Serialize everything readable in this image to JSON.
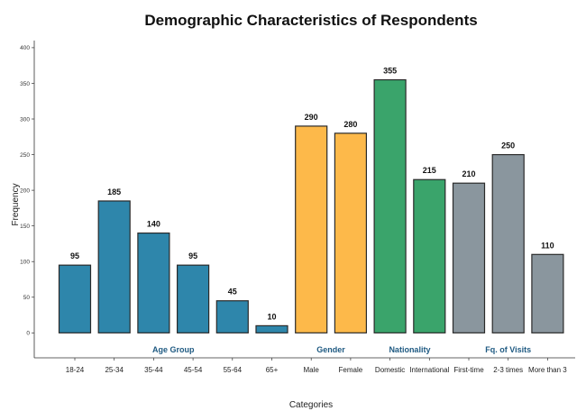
{
  "chart_data": {
    "type": "bar",
    "title": "Demographic Characteristics of Respondents",
    "xlabel": "Categories",
    "ylabel": "Frequency",
    "ylim": [
      -35,
      410
    ],
    "yticks": [
      0,
      50,
      100,
      150,
      200,
      250,
      300,
      350,
      400
    ],
    "grid": false,
    "categories": [
      "18-24",
      "25-34",
      "35-44",
      "45-54",
      "55-64",
      "65+",
      "Male",
      "Female",
      "Domestic",
      "International",
      "First-time",
      "2-3 times",
      "More than 3"
    ],
    "values": [
      95,
      185,
      140,
      95,
      45,
      10,
      290,
      280,
      355,
      215,
      210,
      250,
      110
    ],
    "groups": [
      {
        "name": "Age Group",
        "start": 0,
        "end": 5,
        "color": "#2e86ab"
      },
      {
        "name": "Gender",
        "start": 6,
        "end": 7,
        "color": "#fdb94a"
      },
      {
        "name": "Nationality",
        "start": 8,
        "end": 9,
        "color": "#3aa46b"
      },
      {
        "name": "Fq. of Visits",
        "start": 10,
        "end": 12,
        "color": "#8a969e"
      }
    ],
    "group_label_color": "#1f5a82"
  }
}
